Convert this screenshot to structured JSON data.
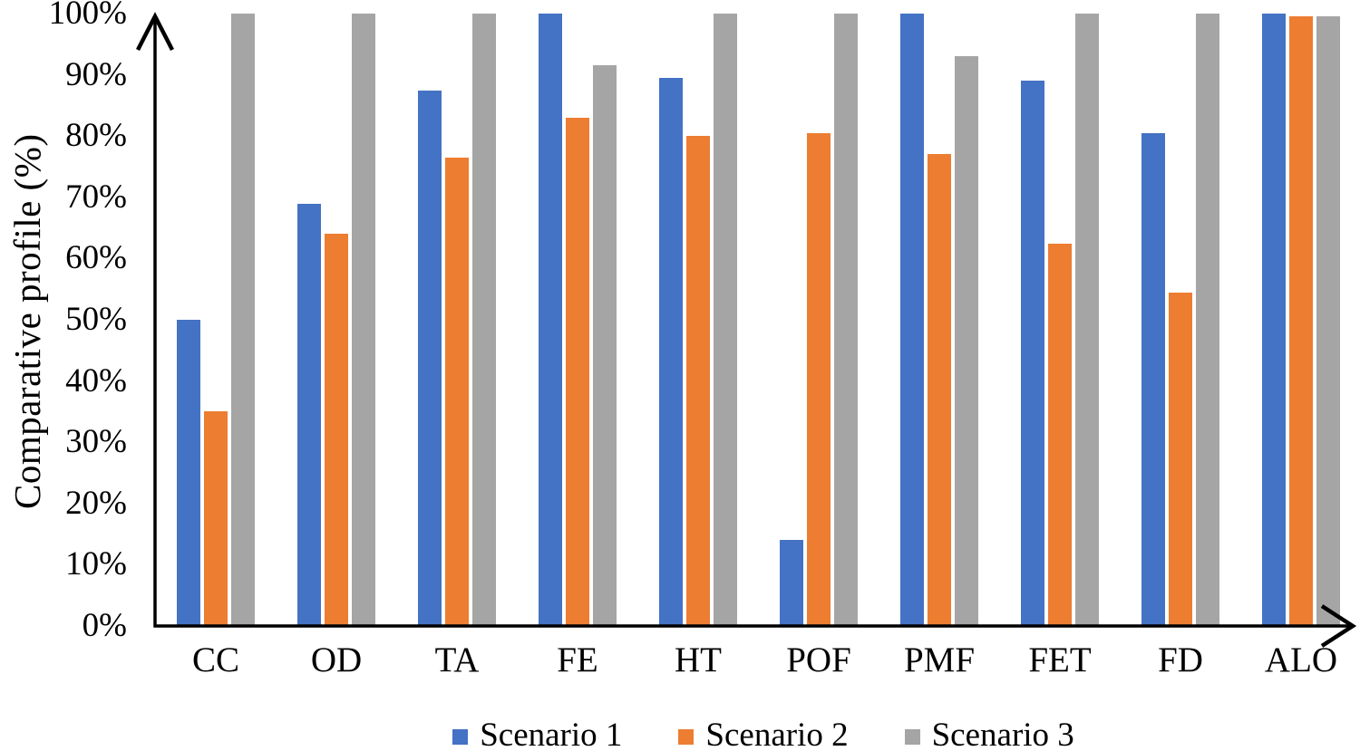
{
  "chart_data": {
    "type": "bar",
    "title": "",
    "xlabel": "",
    "ylabel": "Comparative profile (%)",
    "ylim": [
      0,
      100
    ],
    "grid": false,
    "legend_position": "bottom",
    "ytick_labels": [
      "0%",
      "10%",
      "20%",
      "30%",
      "40%",
      "50%",
      "60%",
      "70%",
      "80%",
      "90%",
      "100%"
    ],
    "categories": [
      "CC",
      "OD",
      "TA",
      "FE",
      "HT",
      "POF",
      "PMF",
      "FET",
      "FD",
      "ALO"
    ],
    "series": [
      {
        "name": "Scenario 1",
        "color": "#4472C4",
        "values": [
          50,
          69,
          87.5,
          100,
          89.5,
          14,
          100,
          89,
          80.5,
          100
        ]
      },
      {
        "name": "Scenario 2",
        "color": "#ED7D31",
        "values": [
          35,
          64,
          76.5,
          83,
          80,
          80.5,
          77,
          62.5,
          54.5,
          99.5
        ]
      },
      {
        "name": "Scenario 3",
        "color": "#A5A5A5",
        "values": [
          100,
          100,
          100,
          91.5,
          100,
          100,
          93,
          100,
          100,
          99.5
        ]
      }
    ]
  },
  "colors": {
    "axis": "#000000",
    "background": "#FFFFFF",
    "text": "#000000"
  }
}
